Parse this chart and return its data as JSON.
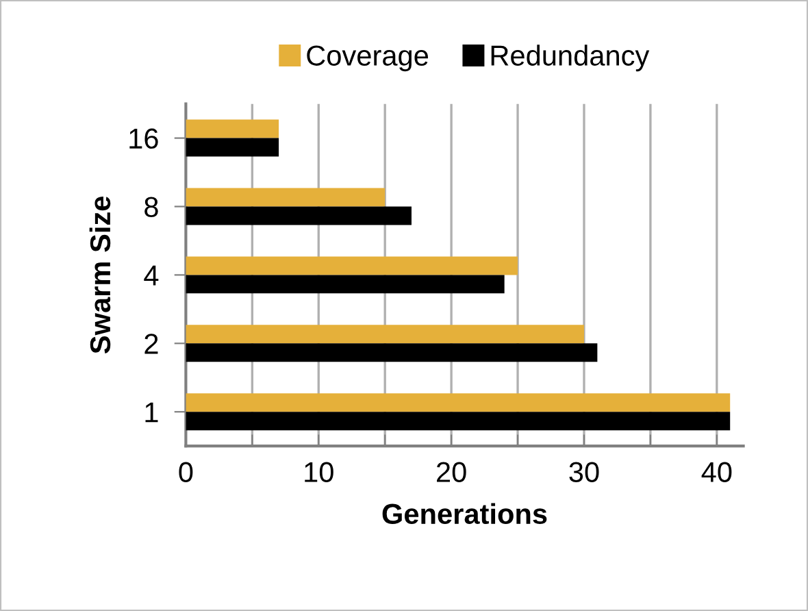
{
  "chart_data": {
    "type": "bar",
    "orientation": "horizontal",
    "xlabel": "Generations",
    "ylabel": "Swarm Size",
    "categories": [
      "16",
      "8",
      "4",
      "2",
      "1"
    ],
    "series": [
      {
        "name": "Coverage",
        "color": "#e5b03a",
        "values": [
          7,
          15,
          25,
          30,
          41
        ]
      },
      {
        "name": "Redundancy",
        "color": "#000000",
        "values": [
          7,
          17,
          24,
          31,
          41
        ]
      }
    ],
    "xlim": [
      0,
      42
    ],
    "xticks": [
      0,
      {
        "value": 5,
        "label": null
      },
      10,
      {
        "value": 15,
        "label": null
      },
      20,
      {
        "value": 25,
        "label": null
      },
      30,
      {
        "value": 35,
        "label": null
      },
      40
    ],
    "grid": "x",
    "legend": "top"
  }
}
